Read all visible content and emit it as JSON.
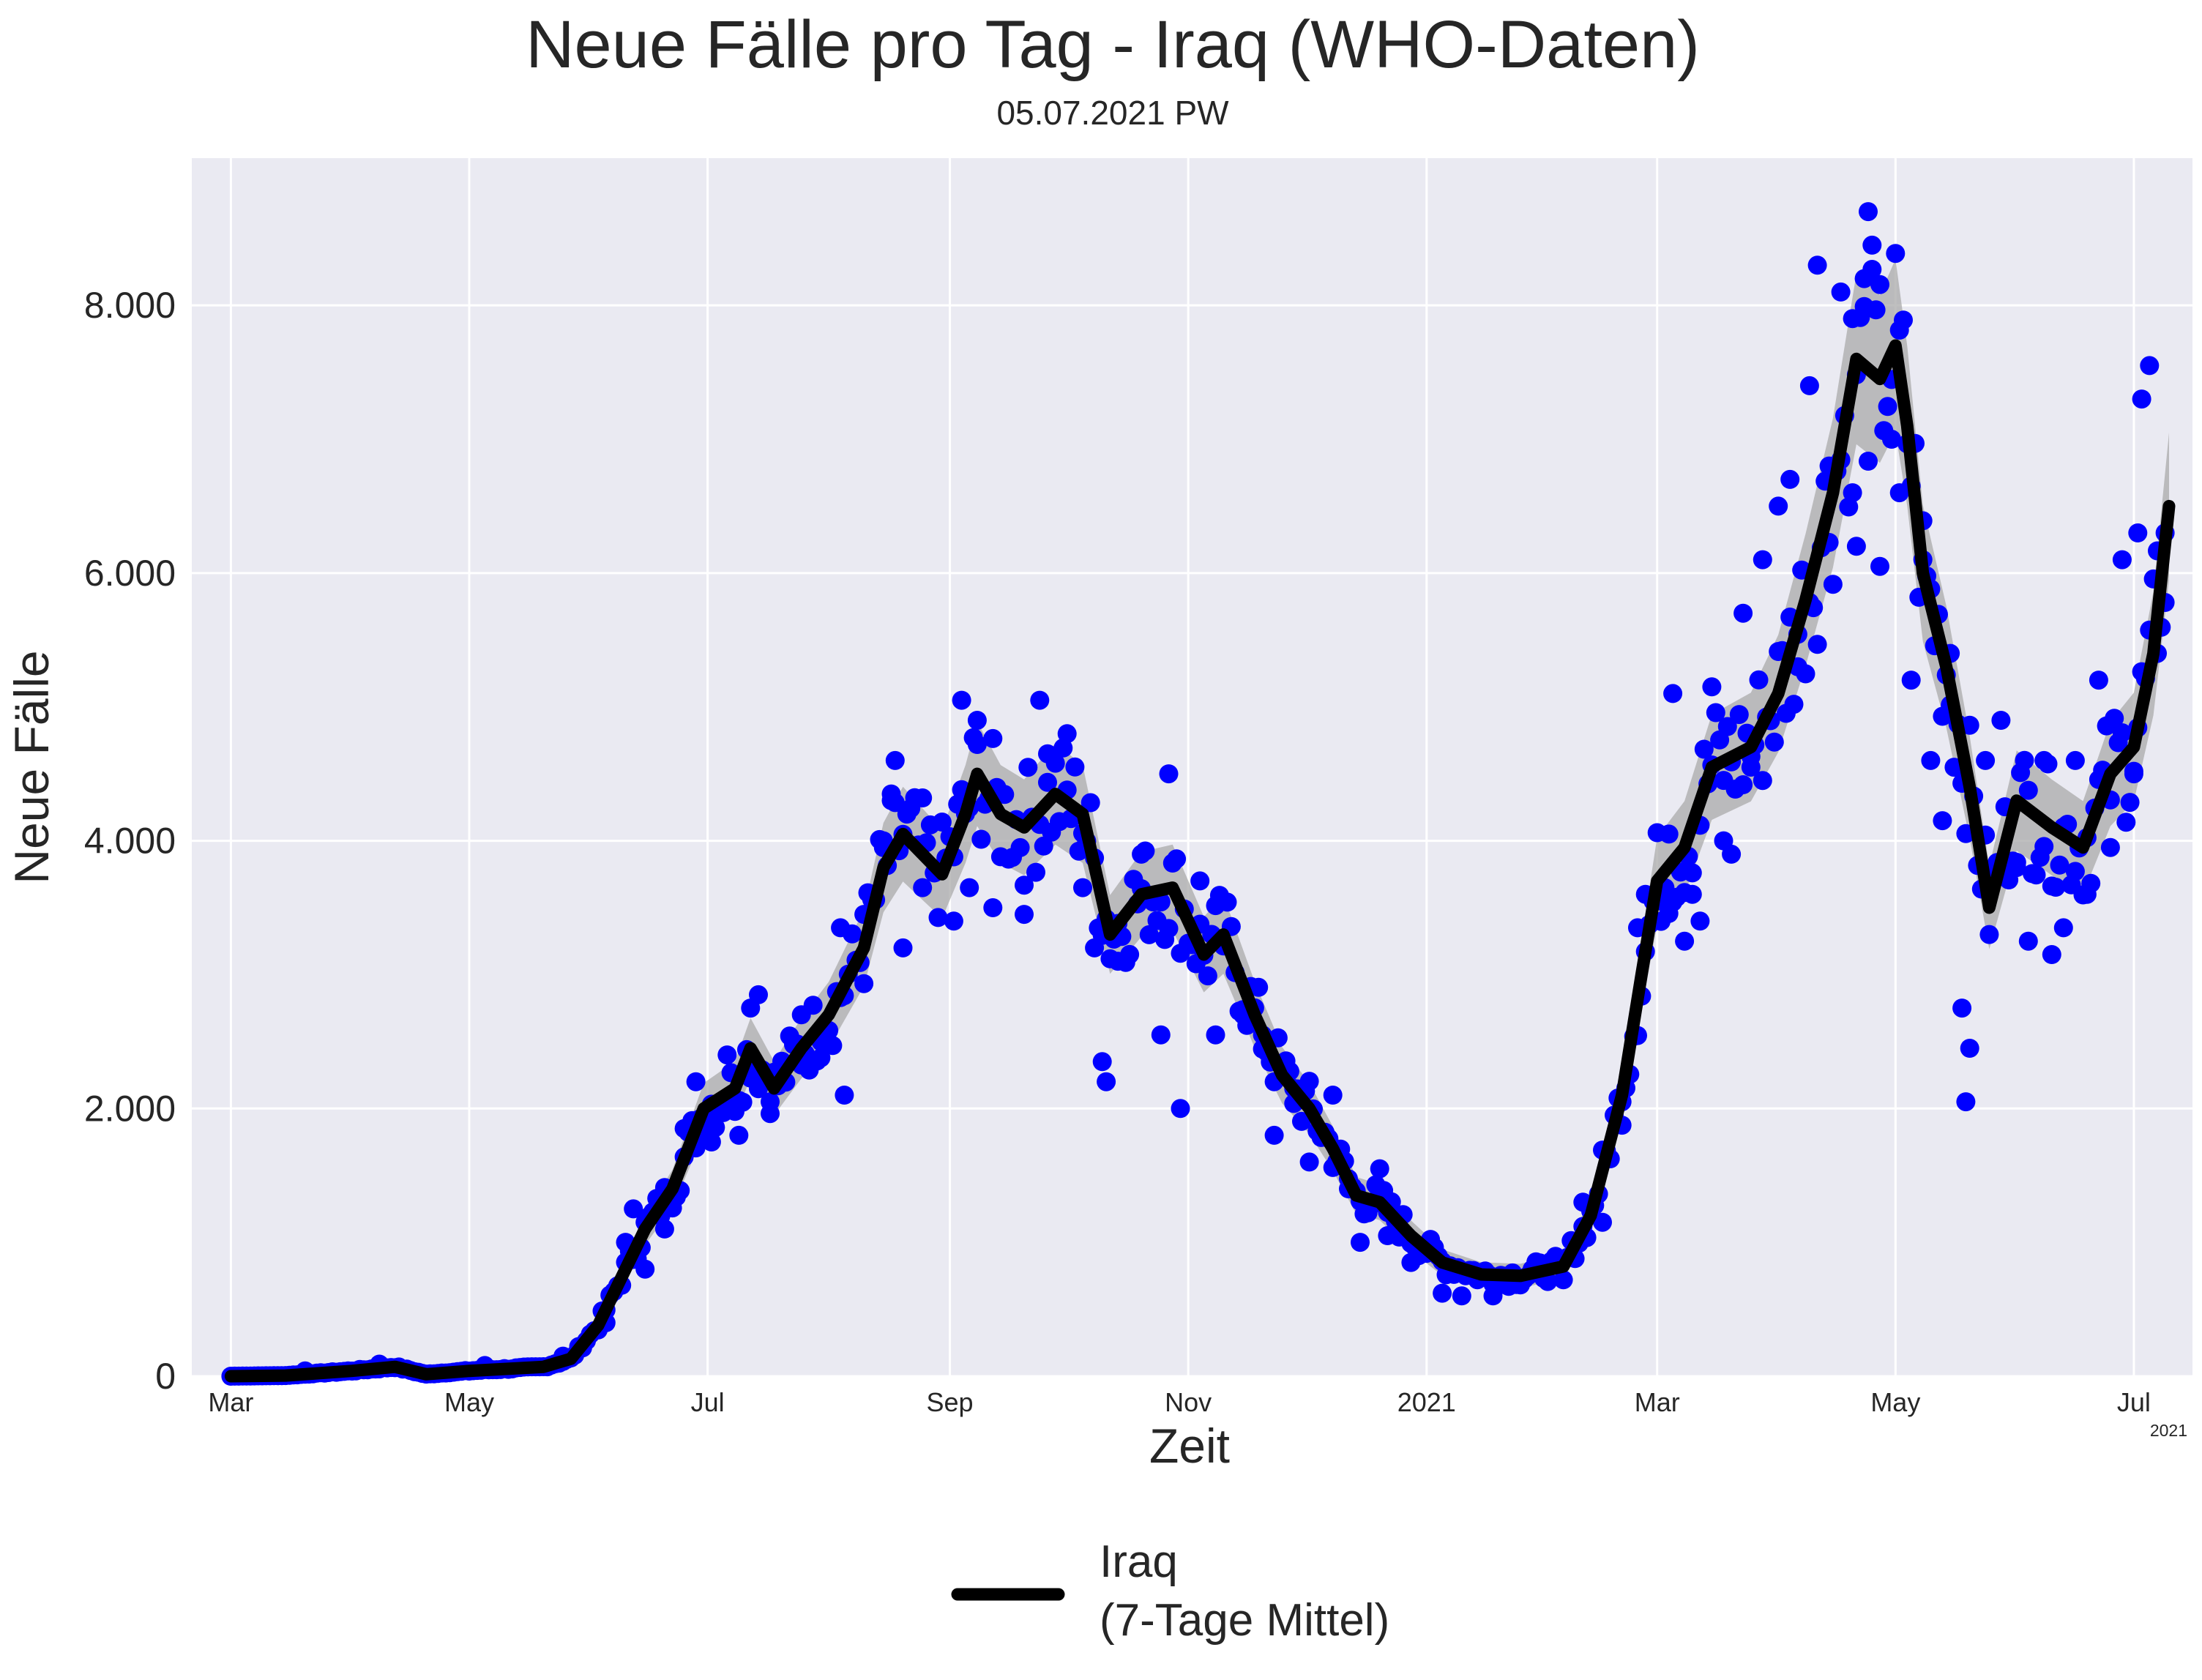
{
  "chart_data": {
    "type": "line",
    "title": "Neue Fälle pro Tag - Iraq (WHO-Daten)",
    "subtitle": "05.07.2021 PW",
    "xlabel": "Zeit",
    "ylabel": "Neue Fälle",
    "x_offset_label": "2021",
    "x_range": [
      "2020-02-20",
      "2021-07-16"
    ],
    "ylim": [
      0,
      9100
    ],
    "grid": true,
    "yticks": [
      {
        "value": 0,
        "label": "0"
      },
      {
        "value": 2000,
        "label": "2.000"
      },
      {
        "value": 4000,
        "label": "4.000"
      },
      {
        "value": 6000,
        "label": "6.000"
      },
      {
        "value": 8000,
        "label": "8.000"
      }
    ],
    "xticks": [
      {
        "date": "2020-03-01",
        "label": "Mar"
      },
      {
        "date": "2020-05-01",
        "label": "May"
      },
      {
        "date": "2020-07-01",
        "label": "Jul"
      },
      {
        "date": "2020-09-01",
        "label": "Sep"
      },
      {
        "date": "2020-11-01",
        "label": "Nov"
      },
      {
        "date": "2021-01-01",
        "label": "2021"
      },
      {
        "date": "2021-03-01",
        "label": "Mar"
      },
      {
        "date": "2021-05-01",
        "label": "May"
      },
      {
        "date": "2021-07-01",
        "label": "Jul"
      }
    ],
    "legend": {
      "position": "bottom-center",
      "label_line1": "Iraq",
      "label_line2": "(7-Tage Mittel)"
    },
    "colors": {
      "daily_points": "#0000ff",
      "mean_line": "#000000",
      "band": "#a9a9a9",
      "plot_bg": "#eaeaf2",
      "grid": "#ffffff"
    },
    "series": [
      {
        "name": "Iraq (7-Tage Mittel)",
        "role": "mean_line",
        "points": [
          [
            "2020-03-01",
            0
          ],
          [
            "2020-03-15",
            5
          ],
          [
            "2020-04-01",
            40
          ],
          [
            "2020-04-12",
            70
          ],
          [
            "2020-04-20",
            15
          ],
          [
            "2020-05-01",
            40
          ],
          [
            "2020-05-20",
            70
          ],
          [
            "2020-05-27",
            130
          ],
          [
            "2020-06-03",
            380
          ],
          [
            "2020-06-10",
            800
          ],
          [
            "2020-06-15",
            1100
          ],
          [
            "2020-06-22",
            1400
          ],
          [
            "2020-06-30",
            2000
          ],
          [
            "2020-07-08",
            2150
          ],
          [
            "2020-07-12",
            2450
          ],
          [
            "2020-07-18",
            2150
          ],
          [
            "2020-07-25",
            2450
          ],
          [
            "2020-08-01",
            2700
          ],
          [
            "2020-08-10",
            3200
          ],
          [
            "2020-08-15",
            3800
          ],
          [
            "2020-08-20",
            4050
          ],
          [
            "2020-08-30",
            3750
          ],
          [
            "2020-09-05",
            4200
          ],
          [
            "2020-09-08",
            4500
          ],
          [
            "2020-09-14",
            4200
          ],
          [
            "2020-09-20",
            4100
          ],
          [
            "2020-09-28",
            4350
          ],
          [
            "2020-10-05",
            4200
          ],
          [
            "2020-10-12",
            3300
          ],
          [
            "2020-10-20",
            3600
          ],
          [
            "2020-10-28",
            3650
          ],
          [
            "2020-11-01",
            3400
          ],
          [
            "2020-11-05",
            3150
          ],
          [
            "2020-11-10",
            3300
          ],
          [
            "2020-11-18",
            2700
          ],
          [
            "2020-11-25",
            2250
          ],
          [
            "2020-12-02",
            2000
          ],
          [
            "2020-12-08",
            1700
          ],
          [
            "2020-12-14",
            1350
          ],
          [
            "2020-12-20",
            1300
          ],
          [
            "2020-12-28",
            1050
          ],
          [
            "2021-01-05",
            850
          ],
          [
            "2021-01-15",
            760
          ],
          [
            "2021-01-25",
            750
          ],
          [
            "2021-02-05",
            820
          ],
          [
            "2021-02-12",
            1200
          ],
          [
            "2021-02-20",
            2100
          ],
          [
            "2021-02-25",
            3000
          ],
          [
            "2021-03-01",
            3700
          ],
          [
            "2021-03-08",
            3950
          ],
          [
            "2021-03-15",
            4550
          ],
          [
            "2021-03-25",
            4700
          ],
          [
            "2021-04-01",
            5100
          ],
          [
            "2021-04-08",
            5800
          ],
          [
            "2021-04-15",
            6600
          ],
          [
            "2021-04-21",
            7600
          ],
          [
            "2021-04-27",
            7450
          ],
          [
            "2021-05-01",
            7700
          ],
          [
            "2021-05-04",
            7100
          ],
          [
            "2021-05-08",
            6000
          ],
          [
            "2021-05-14",
            5300
          ],
          [
            "2021-05-20",
            4400
          ],
          [
            "2021-05-25",
            3500
          ],
          [
            "2021-06-01",
            4300
          ],
          [
            "2021-06-10",
            4100
          ],
          [
            "2021-06-18",
            3950
          ],
          [
            "2021-06-25",
            4500
          ],
          [
            "2021-07-01",
            4700
          ],
          [
            "2021-07-06",
            5400
          ],
          [
            "2021-07-10",
            6500
          ]
        ]
      },
      {
        "name": "",
        "role": "daily_points",
        "points": [
          [
            "2020-03-20",
            40
          ],
          [
            "2020-04-08",
            90
          ],
          [
            "2020-05-05",
            80
          ],
          [
            "2020-05-25",
            150
          ],
          [
            "2020-06-05",
            400
          ],
          [
            "2020-06-10",
            1000
          ],
          [
            "2020-06-12",
            1250
          ],
          [
            "2020-06-15",
            800
          ],
          [
            "2020-06-20",
            1100
          ],
          [
            "2020-06-25",
            1850
          ],
          [
            "2020-06-28",
            2200
          ],
          [
            "2020-07-02",
            1750
          ],
          [
            "2020-07-06",
            2400
          ],
          [
            "2020-07-09",
            1800
          ],
          [
            "2020-07-12",
            2750
          ],
          [
            "2020-07-14",
            2850
          ],
          [
            "2020-07-17",
            2050
          ],
          [
            "2020-07-25",
            2700
          ],
          [
            "2020-07-30",
            2500
          ],
          [
            "2020-08-04",
            3350
          ],
          [
            "2020-08-05",
            2100
          ],
          [
            "2020-08-10",
            3450
          ],
          [
            "2020-08-15",
            4000
          ],
          [
            "2020-08-17",
            4350
          ],
          [
            "2020-08-18",
            4600
          ],
          [
            "2020-08-20",
            3200
          ],
          [
            "2020-08-25",
            3650
          ],
          [
            "2020-09-02",
            3400
          ],
          [
            "2020-09-04",
            5050
          ],
          [
            "2020-09-06",
            3650
          ],
          [
            "2020-09-08",
            4900
          ],
          [
            "2020-09-12",
            3500
          ],
          [
            "2020-09-20",
            3450
          ],
          [
            "2020-09-24",
            5050
          ],
          [
            "2020-09-26",
            4650
          ],
          [
            "2020-10-01",
            4800
          ],
          [
            "2020-10-05",
            3650
          ],
          [
            "2020-10-08",
            3200
          ],
          [
            "2020-10-10",
            2350
          ],
          [
            "2020-10-11",
            2200
          ],
          [
            "2020-10-14",
            3100
          ],
          [
            "2020-10-20",
            3900
          ],
          [
            "2020-10-25",
            2550
          ],
          [
            "2020-10-27",
            4500
          ],
          [
            "2020-10-30",
            2000
          ],
          [
            "2020-11-04",
            3700
          ],
          [
            "2020-11-08",
            2550
          ],
          [
            "2020-11-15",
            2700
          ],
          [
            "2020-11-20",
            2550
          ],
          [
            "2020-11-23",
            1800
          ],
          [
            "2020-11-28",
            2150
          ],
          [
            "2020-12-02",
            1600
          ],
          [
            "2020-12-08",
            2100
          ],
          [
            "2020-12-12",
            1400
          ],
          [
            "2020-12-15",
            1000
          ],
          [
            "2020-12-20",
            1550
          ],
          [
            "2020-12-22",
            1050
          ],
          [
            "2020-12-28",
            850
          ],
          [
            "2021-01-05",
            620
          ],
          [
            "2021-01-10",
            600
          ],
          [
            "2021-01-18",
            600
          ],
          [
            "2021-01-25",
            730
          ],
          [
            "2021-02-05",
            720
          ],
          [
            "2021-02-10",
            1300
          ],
          [
            "2021-02-15",
            1150
          ],
          [
            "2021-02-20",
            2050
          ],
          [
            "2021-02-24",
            3350
          ],
          [
            "2021-02-26",
            3600
          ],
          [
            "2021-03-02",
            3550
          ],
          [
            "2021-03-04",
            4050
          ],
          [
            "2021-03-05",
            5100
          ],
          [
            "2021-03-08",
            3250
          ],
          [
            "2021-03-10",
            3600
          ],
          [
            "2021-03-12",
            3400
          ],
          [
            "2021-03-15",
            5150
          ],
          [
            "2021-03-18",
            4000
          ],
          [
            "2021-03-20",
            3900
          ],
          [
            "2021-03-23",
            5700
          ],
          [
            "2021-03-25",
            4550
          ],
          [
            "2021-03-28",
            6100
          ],
          [
            "2021-04-01",
            6500
          ],
          [
            "2021-04-04",
            6700
          ],
          [
            "2021-04-06",
            5300
          ],
          [
            "2021-04-09",
            7400
          ],
          [
            "2021-04-11",
            8300
          ],
          [
            "2021-04-14",
            6800
          ],
          [
            "2021-04-17",
            8100
          ],
          [
            "2021-04-20",
            6600
          ],
          [
            "2021-04-21",
            6200
          ],
          [
            "2021-04-23",
            8200
          ],
          [
            "2021-04-24",
            8700
          ],
          [
            "2021-04-25",
            8450
          ],
          [
            "2021-04-27",
            6050
          ],
          [
            "2021-04-30",
            7000
          ],
          [
            "2021-05-02",
            6600
          ],
          [
            "2021-05-05",
            5200
          ],
          [
            "2021-05-08",
            6100
          ],
          [
            "2021-05-10",
            4600
          ],
          [
            "2021-05-13",
            4150
          ],
          [
            "2021-05-15",
            5400
          ],
          [
            "2021-05-18",
            2750
          ],
          [
            "2021-05-19",
            2050
          ],
          [
            "2021-05-20",
            2450
          ],
          [
            "2021-05-24",
            4600
          ],
          [
            "2021-05-28",
            4900
          ],
          [
            "2021-06-01",
            3800
          ],
          [
            "2021-06-04",
            3250
          ],
          [
            "2021-06-08",
            4600
          ],
          [
            "2021-06-10",
            3150
          ],
          [
            "2021-06-13",
            3350
          ],
          [
            "2021-06-16",
            4600
          ],
          [
            "2021-06-19",
            3600
          ],
          [
            "2021-06-22",
            5200
          ],
          [
            "2021-06-25",
            3950
          ],
          [
            "2021-06-28",
            6100
          ],
          [
            "2021-07-01",
            4500
          ],
          [
            "2021-07-02",
            6300
          ],
          [
            "2021-07-03",
            7300
          ],
          [
            "2021-07-05",
            7550
          ],
          [
            "2021-07-07",
            5400
          ],
          [
            "2021-07-09",
            6300
          ]
        ]
      }
    ]
  }
}
